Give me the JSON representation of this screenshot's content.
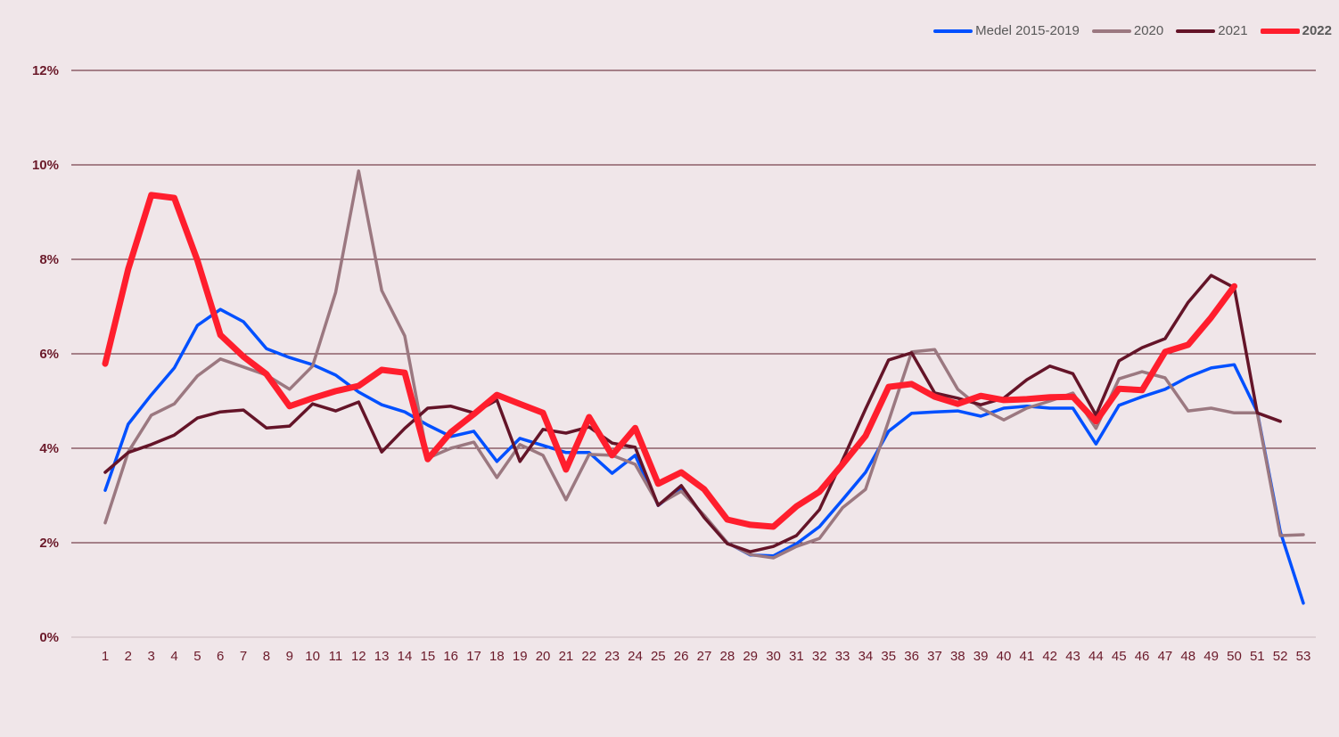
{
  "chart_data": {
    "type": "line",
    "title": "",
    "xlabel": "",
    "ylabel": "",
    "ylim": [
      0,
      12
    ],
    "yticks": [
      "0%",
      "2%",
      "4%",
      "6%",
      "8%",
      "10%",
      "12%"
    ],
    "ytick_values": [
      0,
      2,
      4,
      6,
      8,
      10,
      12
    ],
    "grid": "horizontal",
    "legend_position": "top-right",
    "x": [
      1,
      2,
      3,
      4,
      5,
      6,
      7,
      8,
      9,
      10,
      11,
      12,
      13,
      14,
      15,
      16,
      17,
      18,
      19,
      20,
      21,
      22,
      23,
      24,
      25,
      26,
      27,
      28,
      29,
      30,
      31,
      32,
      33,
      34,
      35,
      36,
      37,
      38,
      39,
      40,
      41,
      42,
      43,
      44,
      45,
      46,
      47,
      48,
      49,
      50,
      51,
      52,
      53
    ],
    "series": [
      {
        "name": "Medel 2015-2019",
        "color": "#0050ff",
        "width": 3.5,
        "bold": false,
        "values": [
          3.11,
          4.51,
          5.13,
          5.7,
          6.6,
          6.94,
          6.68,
          6.11,
          5.92,
          5.77,
          5.55,
          5.19,
          4.92,
          4.77,
          4.49,
          4.25,
          4.36,
          3.72,
          4.21,
          4.06,
          3.91,
          3.91,
          3.47,
          3.85,
          2.79,
          3.15,
          2.55,
          2.0,
          1.74,
          1.72,
          1.98,
          2.34,
          2.91,
          3.49,
          4.36,
          4.74,
          4.77,
          4.79,
          4.68,
          4.85,
          4.89,
          4.85,
          4.85,
          4.09,
          4.91,
          5.09,
          5.25,
          5.51,
          5.7,
          5.77,
          4.77,
          2.23,
          0.72
        ]
      },
      {
        "name": "2020",
        "color": "#9b7880",
        "width": 3.5,
        "bold": false,
        "values": [
          2.42,
          3.92,
          4.7,
          4.94,
          5.53,
          5.89,
          5.72,
          5.55,
          5.25,
          5.74,
          7.3,
          9.87,
          7.34,
          6.38,
          3.79,
          4.0,
          4.13,
          3.38,
          4.08,
          3.85,
          2.91,
          3.87,
          3.85,
          3.66,
          2.81,
          3.09,
          2.58,
          2.0,
          1.75,
          1.68,
          1.92,
          2.09,
          2.74,
          3.13,
          4.58,
          6.04,
          6.09,
          5.25,
          4.85,
          4.6,
          4.85,
          5.0,
          5.17,
          4.42,
          5.47,
          5.62,
          5.49,
          4.79,
          4.85,
          4.75,
          4.75,
          2.15,
          2.17
        ]
      },
      {
        "name": "2021",
        "color": "#641428",
        "width": 3.5,
        "bold": false,
        "values": [
          3.49,
          3.91,
          4.08,
          4.28,
          4.64,
          4.77,
          4.81,
          4.43,
          4.47,
          4.94,
          4.79,
          4.98,
          3.92,
          4.42,
          4.85,
          4.89,
          4.75,
          5.02,
          3.72,
          4.4,
          4.32,
          4.45,
          4.11,
          4.02,
          2.79,
          3.21,
          2.53,
          1.98,
          1.81,
          1.92,
          2.15,
          2.7,
          3.75,
          4.83,
          5.87,
          6.02,
          5.17,
          5.06,
          4.92,
          5.06,
          5.45,
          5.74,
          5.58,
          4.7,
          5.85,
          6.13,
          6.32,
          7.09,
          7.66,
          7.4,
          4.75,
          4.57,
          null
        ]
      },
      {
        "name": "2022",
        "color": "#ff1e2d",
        "width": 7,
        "bold": true,
        "values": [
          5.79,
          7.79,
          9.36,
          9.3,
          7.98,
          6.4,
          5.94,
          5.57,
          4.89,
          5.06,
          5.21,
          5.32,
          5.66,
          5.6,
          3.77,
          4.34,
          4.72,
          5.13,
          4.94,
          4.75,
          3.55,
          4.66,
          3.85,
          4.43,
          3.25,
          3.49,
          3.13,
          2.49,
          2.38,
          2.34,
          2.77,
          3.08,
          3.66,
          4.26,
          5.3,
          5.36,
          5.09,
          4.94,
          5.11,
          5.02,
          5.04,
          5.08,
          5.09,
          4.57,
          5.26,
          5.23,
          6.04,
          6.19,
          6.77,
          7.43,
          null,
          null,
          null
        ]
      }
    ]
  }
}
